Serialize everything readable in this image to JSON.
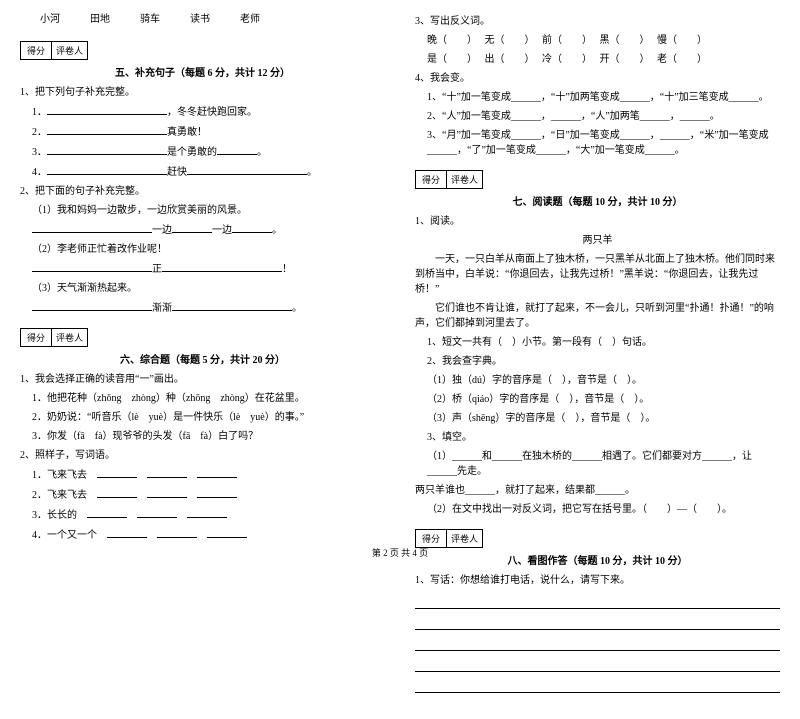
{
  "words_row": [
    "小河",
    "田地",
    "骑车",
    "读书",
    "老师"
  ],
  "scorebox": {
    "label1": "得分",
    "label2": "评卷人"
  },
  "sec5": {
    "title": "五、补充句子（每题 6 分，共计 12 分）",
    "q1": "1、把下列句子补充完整。",
    "q1_1_suffix": "，冬冬赶快跑回家。",
    "q1_2_suffix": "真勇敢！",
    "q1_3_mid": "是个勇敢的",
    "q1_4_mid": "赶快",
    "q2": "2、把下面的句子补充完整。",
    "q2_1": "（1）我和妈妈一边散步，一边欣赏美丽的风景。",
    "q2_1b_pre": "一边",
    "q2_1b_mid": "一边",
    "q2_2": "（2）李老师正忙着改作业呢！",
    "q2_2b": "正",
    "q2_3": "（3）天气渐渐热起来。",
    "q2_3b": "渐渐"
  },
  "sec6": {
    "title": "六、综合题（每题 5 分，共计 20 分）",
    "q1": "1、我会选择正确的读音用“一”画出。",
    "q1_1": "1．他把花种（zhǒng　zhòng）种（zhōng　zhòng）在花盆里。",
    "q1_2": "2．奶奶说：“听音乐（lè　yuè）是一件快乐（lè　yuè）的事。”",
    "q1_3": "3．你发（fā　fà）现爷爷的头发（fā　fà）白了吗？",
    "q2": "2、照样子，写词语。",
    "q2_1": "1．飞来飞去",
    "q2_2": "2．飞来飞去",
    "q2_3": "3．长长的",
    "q2_4": "4．一个又一个"
  },
  "right": {
    "q3": "3、写出反义词。",
    "q3_line1_a": "晚（　　）",
    "q3_line1_b": "无（　　）",
    "q3_line1_c": "前（　　）",
    "q3_line1_d": "黑（　　）",
    "q3_line1_e": "慢（　　）",
    "q3_line2_a": "是（　　）",
    "q3_line2_b": "出（　　）",
    "q3_line2_c": "冷（　　）",
    "q3_line2_d": "开（　　）",
    "q3_line2_e": "老（　　）",
    "q4": "4、我会变。",
    "q4_1": "1、“十”加一笔变成______，“十”加两笔变成______，“十”加三笔变成______。",
    "q4_2": "2、“人”加一笔变成______，______，“人”加两笔______，______。",
    "q4_3": "3、“月”加一笔变成______，“日”加一笔变成______，______，“米”加一笔变成______，“了”加一笔变成______，“大”加一笔变成______。"
  },
  "sec7": {
    "title": "七、阅读题（每题 10 分，共计 10 分）",
    "q1": "1、阅读。",
    "poem_title": "两只羊",
    "p1": "　　一天，一只白羊从南面上了独木桥，一只黑羊从北面上了独木桥。他们同时来到桥当中，白羊说：“你退回去，让我先过桥！”黑羊说：“你退回去，让我先过桥！”",
    "p2": "　　它们谁也不肯让谁，就打了起来，不一会儿，只听到河里“扑通！扑通！”的响声，它们都掉到河里去了。",
    "r1": "1、短文一共有（　）小节。第一段有（　）句话。",
    "r2": "2、我会查字典。",
    "r2_1": "（1）独（dú）字的音序是（　），音节是（　）。",
    "r2_2": "（2）桥（qiáo）字的音序是（　），音节是（　）。",
    "r2_3": "（3）声（shēng）字的音序是（　），音节是（　）。",
    "r3": "3、填空。",
    "r3_1": "（1）______和______在独木桥的______相遇了。它们都要对方______，让______先走。",
    "r3_1b": "两只羊谁也______，就打了起来，结果都______。",
    "r3_2": "（2）在文中找出一对反义词，把它写在括号里。（　　）—（　　）。"
  },
  "sec8": {
    "title": "八、看图作答（每题 10 分，共计 10 分）",
    "q1": "1、写话：你想给谁打电话，说什么，请写下来。"
  },
  "footer": "第 2 页 共 4 页"
}
